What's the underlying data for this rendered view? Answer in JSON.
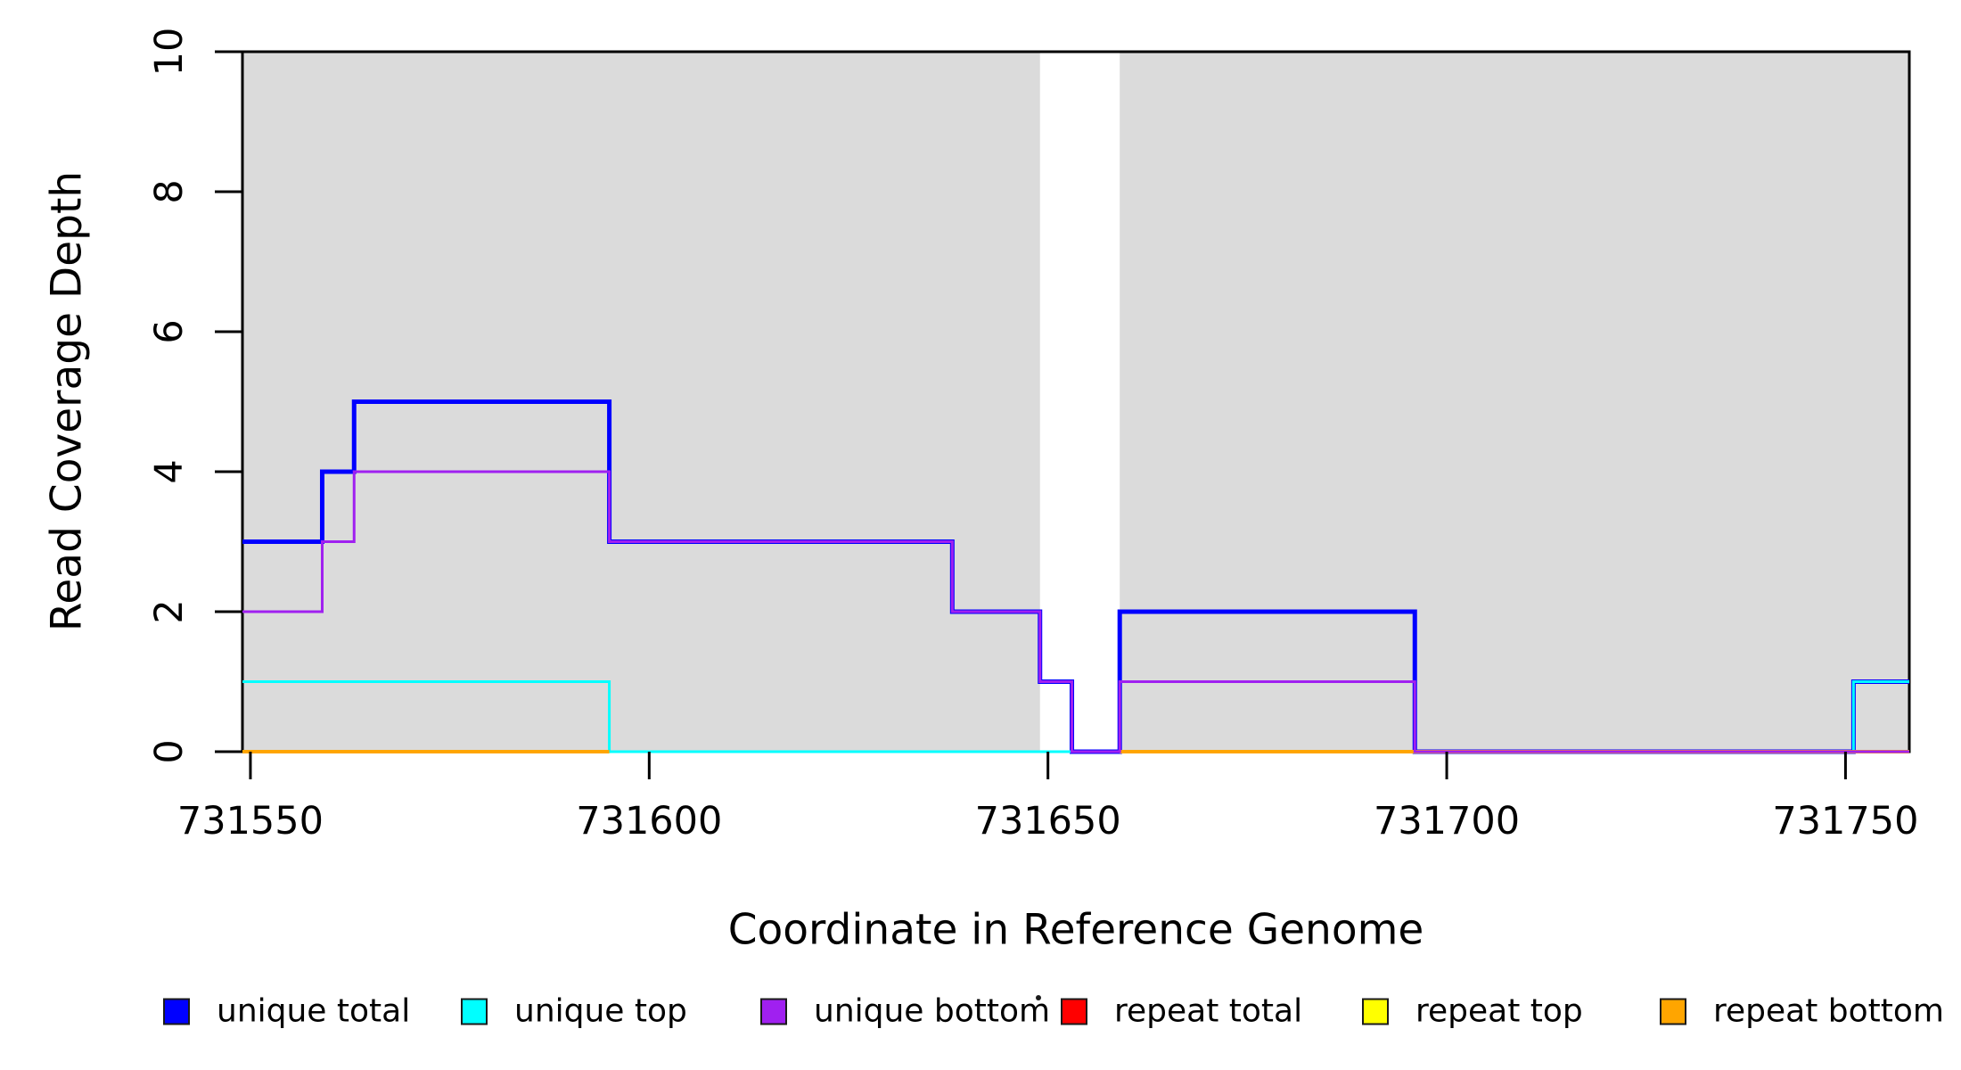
{
  "chart_data": {
    "type": "line",
    "subtype": "step-coverage",
    "title": "",
    "xlabel": "Coordinate in Reference Genome",
    "ylabel": "Read Coverage Depth",
    "xlim": [
      731549,
      731758
    ],
    "ylim": [
      0,
      10
    ],
    "grid": false,
    "xticks": {
      "values": [
        731550,
        731600,
        731650,
        731700,
        731750
      ],
      "labels": [
        "731550",
        "731600",
        "731650",
        "731700",
        "731750"
      ]
    },
    "yticks": {
      "values": [
        0,
        2,
        4,
        6,
        8,
        10
      ],
      "labels": [
        "0",
        "2",
        "4",
        "6",
        "8",
        "10"
      ]
    },
    "shaded_regions": {
      "color": "#DBDBDB",
      "meaning": "repeat-masked intervals shading",
      "ranges": [
        {
          "x0": 731549,
          "x1": 731649
        },
        {
          "x0": 731659,
          "x1": 731758
        }
      ]
    },
    "series": [
      {
        "name": "unique total",
        "color": "#0000FF",
        "line_width": 5,
        "segments": [
          {
            "xs": [
              731549,
              731559,
              731563,
              731595,
              731638,
              731649,
              731653,
              731659,
              731696,
              731751,
              731758
            ],
            "ys": [
              3,
              4,
              5,
              3,
              2,
              1,
              0,
              2,
              0,
              1
            ]
          }
        ]
      },
      {
        "name": "unique top",
        "color": "#00FFFF",
        "line_width": 3,
        "segments": [
          {
            "xs": [
              731549,
              731595,
              731751,
              731758
            ],
            "ys": [
              1,
              0,
              1
            ]
          }
        ]
      },
      {
        "name": "unique bottom",
        "color": "#A020F0",
        "line_width": 3,
        "segments": [
          {
            "xs": [
              731549,
              731559,
              731563,
              731595,
              731638,
              731649,
              731653,
              731659,
              731696,
              731758
            ],
            "ys": [
              2,
              3,
              4,
              3,
              2,
              1,
              0,
              1,
              0
            ]
          }
        ]
      },
      {
        "name": "repeat total",
        "color": "#FF0000",
        "line_width": 3,
        "segments": [
          {
            "xs": [
              731549,
              731758
            ],
            "ys": [
              0
            ]
          }
        ]
      },
      {
        "name": "repeat top",
        "color": "#FFFF00",
        "line_width": 3,
        "segments": [
          {
            "xs": [
              731549,
              731758
            ],
            "ys": [
              0
            ]
          }
        ]
      },
      {
        "name": "repeat bottom",
        "color": "#FFA500",
        "line_width": 4,
        "segments": [
          {
            "xs": [
              731549,
              731595
            ],
            "ys": [
              0
            ]
          },
          {
            "xs": [
              731659,
              731758
            ],
            "ys": [
              0
            ]
          }
        ]
      }
    ],
    "draw_order": [
      "repeat total",
      "repeat top",
      "unique total",
      "unique top",
      "repeat bottom",
      "unique bottom"
    ],
    "legend": {
      "position": "bottom",
      "entries": [
        "unique total",
        "unique top",
        "unique bottom",
        "repeat total",
        "repeat top",
        "repeat bottom"
      ]
    },
    "axis_color": "#000000"
  }
}
